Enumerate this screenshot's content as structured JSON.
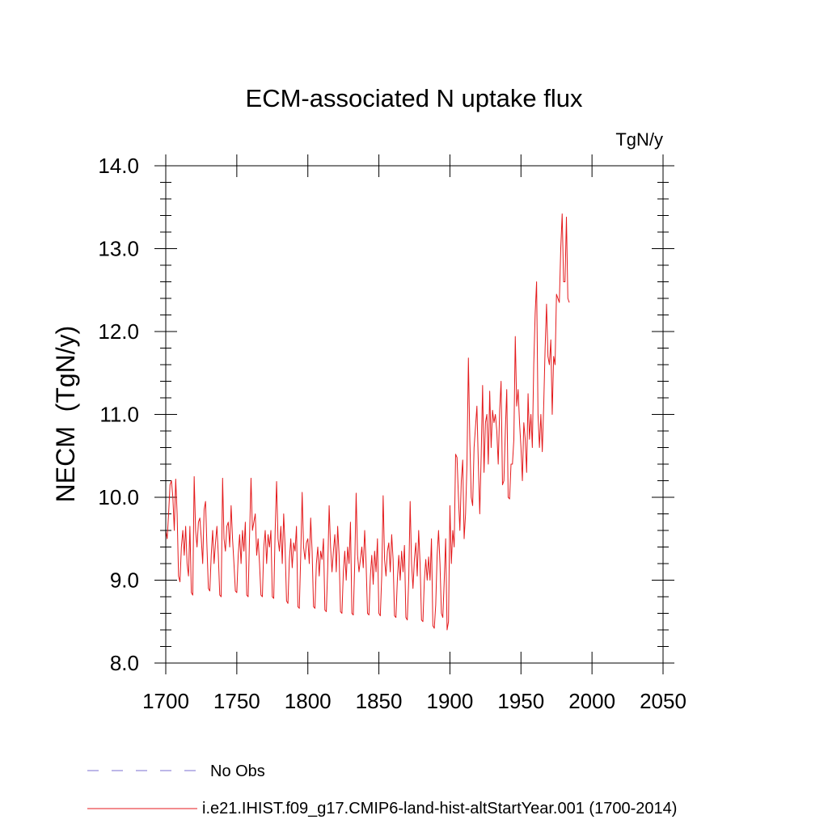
{
  "chart_data": {
    "type": "line",
    "title": "ECM-associated N uptake flux",
    "units": "TgN/y",
    "ylabel": "NECM  (TgN/y)",
    "xlabel": "",
    "xlim": [
      1700,
      2050
    ],
    "ylim": [
      8.0,
      14.0
    ],
    "xticks": [
      "1700",
      "1750",
      "1800",
      "1850",
      "1900",
      "1950",
      "2000",
      "2050"
    ],
    "yticks": [
      "8.0",
      "9.0",
      "10.0",
      "11.0",
      "12.0",
      "13.0",
      "14.0"
    ],
    "grid": false,
    "legend_position": "bottom",
    "legend": [
      {
        "label": "No Obs",
        "color": "#7b6fd0",
        "style": "dashed"
      },
      {
        "label": "i.e21.IHIST.f09_g17.CMIP6-land-hist-altStartYear.001 (1700-2014)",
        "color": "#e41a1c",
        "style": "solid"
      }
    ],
    "series": [
      {
        "name": "i.e21.IHIST.f09_g17.CMIP6-land-hist-altStartYear.001 (1700-2014)",
        "color": "#e41a1c",
        "x_start": 1700,
        "x_step": 1,
        "values": [
          9.6,
          9.5,
          9.8,
          10.15,
          10.2,
          10.0,
          9.6,
          10.22,
          9.8,
          9.05,
          8.98,
          9.4,
          9.6,
          9.3,
          9.65,
          9.2,
          9.05,
          9.65,
          8.85,
          8.82,
          10.25,
          9.6,
          9.4,
          9.7,
          9.75,
          9.5,
          9.2,
          9.85,
          9.95,
          9.4,
          8.9,
          8.87,
          9.3,
          9.6,
          9.2,
          9.45,
          9.65,
          9.3,
          8.82,
          8.8,
          10.23,
          9.5,
          9.35,
          9.65,
          9.7,
          9.4,
          9.9,
          9.5,
          9.2,
          8.87,
          8.85,
          9.3,
          9.55,
          9.2,
          9.6,
          9.35,
          9.7,
          8.82,
          8.8,
          9.55,
          10.23,
          9.6,
          9.7,
          9.8,
          9.3,
          9.5,
          9.2,
          8.82,
          8.8,
          9.4,
          9.6,
          9.2,
          9.55,
          9.4,
          9.6,
          8.8,
          8.78,
          9.6,
          10.19,
          9.5,
          9.35,
          9.65,
          9.2,
          9.8,
          9.4,
          8.75,
          8.72,
          9.25,
          9.5,
          9.15,
          9.45,
          9.35,
          9.65,
          8.68,
          8.66,
          9.3,
          10.06,
          9.4,
          9.25,
          9.45,
          9.5,
          9.2,
          9.75,
          9.35,
          8.68,
          8.66,
          9.2,
          9.4,
          9.05,
          9.35,
          9.25,
          9.5,
          8.64,
          8.62,
          9.15,
          9.9,
          9.4,
          9.1,
          9.35,
          9.55,
          9.1,
          9.65,
          9.3,
          8.62,
          8.6,
          9.1,
          9.35,
          9.0,
          9.4,
          9.2,
          9.7,
          8.6,
          8.58,
          9.2,
          10.05,
          9.3,
          9.1,
          9.25,
          9.4,
          9.15,
          9.6,
          9.2,
          8.6,
          8.58,
          9.05,
          9.3,
          8.95,
          9.35,
          9.1,
          9.5,
          8.6,
          8.57,
          9.05,
          10.02,
          9.25,
          9.05,
          9.35,
          9.45,
          9.1,
          9.55,
          9.25,
          8.57,
          8.55,
          9.0,
          9.3,
          9.0,
          9.35,
          9.1,
          9.42,
          8.55,
          8.52,
          9.0,
          9.95,
          9.2,
          8.9,
          9.25,
          9.45,
          9.05,
          9.6,
          9.2,
          8.52,
          8.5,
          9.0,
          9.25,
          9.0,
          9.28,
          9.0,
          9.5,
          8.45,
          8.42,
          8.7,
          9.3,
          9.6,
          9.2,
          8.6,
          8.55,
          9.0,
          9.5,
          8.4,
          8.5,
          9.9,
          9.2,
          9.6,
          9.4,
          10.52,
          10.48,
          10.0,
          9.6,
          10.2,
          10.45,
          9.5,
          9.8,
          10.4,
          11.68,
          10.7,
          10.0,
          9.9,
          10.6,
          10.85,
          11.1,
          10.4,
          9.8,
          10.5,
          11.35,
          10.3,
          10.9,
          11.0,
          10.4,
          11.28,
          10.6,
          11.05,
          10.9,
          11.0,
          10.8,
          10.4,
          11.05,
          11.4,
          10.15,
          10.2,
          10.8,
          11.3,
          10.0,
          9.98,
          10.4,
          10.4,
          10.7,
          11.94,
          11.1,
          11.3,
          10.9,
          10.6,
          10.2,
          10.9,
          10.7,
          10.3,
          11.25,
          10.7,
          11.0,
          10.6,
          11.6,
          12.22,
          12.6,
          11.0,
          10.6,
          11.0,
          10.55,
          11.1,
          11.8,
          12.33,
          11.7,
          11.6,
          11.9,
          11.0,
          11.7,
          11.6,
          12.45,
          12.4,
          12.35,
          13.0,
          13.42,
          12.6,
          12.6,
          13.38,
          12.4,
          12.35
        ]
      },
      {
        "name": "No Obs",
        "color": "#7b6fd0",
        "values": []
      }
    ]
  }
}
